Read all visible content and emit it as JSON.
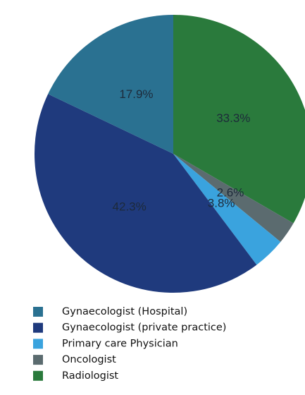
{
  "chart_data": {
    "type": "pie",
    "categories": [
      "Radiologist",
      "Oncologist",
      "Primary care Physician",
      "Gynaecologist (private practice)",
      "Gynaecologist (Hospital)"
    ],
    "values": [
      33.3,
      2.6,
      3.8,
      42.3,
      17.9
    ],
    "value_labels": [
      "33.3%",
      "2.6%",
      "3.8%",
      "42.3%",
      "17.9%"
    ],
    "colors": [
      "#2a7a3c",
      "#5b6b6f",
      "#3aa3de",
      "#1f3a7d",
      "#2a7191"
    ],
    "legend_order": [
      4,
      3,
      2,
      1,
      0
    ]
  }
}
